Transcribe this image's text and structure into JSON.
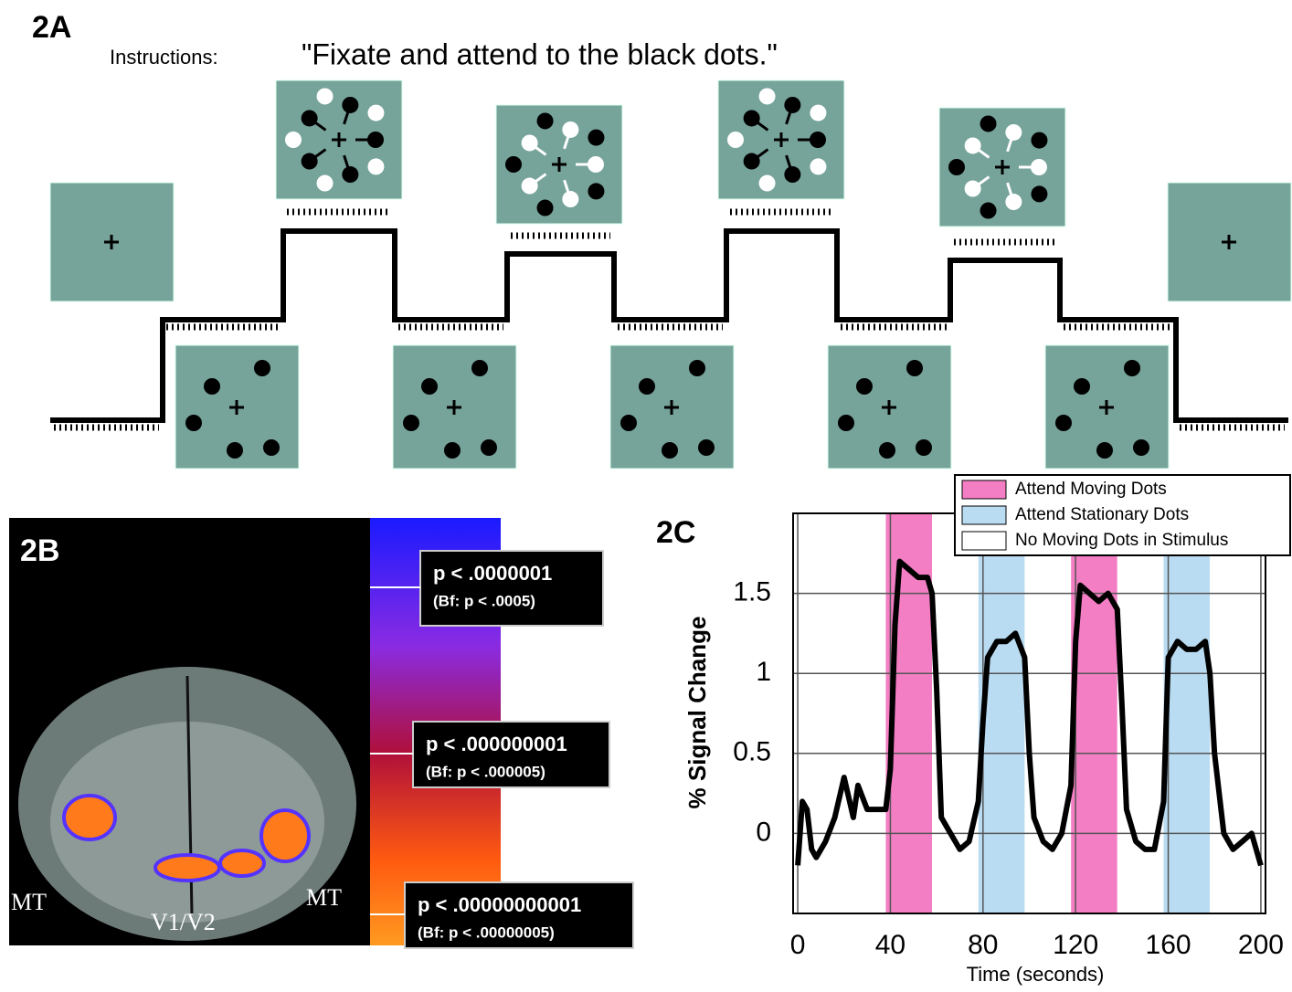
{
  "panel_a": {
    "label": "2A",
    "instructions_label": "Instructions:",
    "instructions": "\"Fixate and attend to the black dots.\""
  },
  "panel_b": {
    "label": "2B",
    "regions": [
      "MT",
      "V1/V2",
      "MT"
    ],
    "thresholds": [
      {
        "p": "p < .0000001",
        "bf": "(Bf: p < .0005)"
      },
      {
        "p": "p < .000000001",
        "bf": "(Bf: p < .000005)"
      },
      {
        "p": "p < .00000000001",
        "bf": "(Bf: p < .00000005)"
      }
    ]
  },
  "chart_data": {
    "type": "line",
    "label": "2C",
    "ylabel": "% Signal Change",
    "xlabel": "Time (seconds)",
    "xlim": [
      -2,
      202
    ],
    "ylim": [
      -0.5,
      2.0
    ],
    "xticks": [
      0,
      40,
      80,
      120,
      160,
      200
    ],
    "yticks": [
      0,
      0.5,
      1,
      1.5
    ],
    "grid": true,
    "legend": "top-right",
    "bands": [
      {
        "name": "Attend Moving Dots",
        "color": "#f47ec4",
        "spans": [
          [
            38,
            58
          ],
          [
            118,
            138
          ]
        ]
      },
      {
        "name": "Attend Stationary Dots",
        "color": "#b9dcf2",
        "spans": [
          [
            78,
            98
          ],
          [
            158,
            178
          ]
        ]
      },
      {
        "name": "No Moving Dots in Stimulus",
        "color": "#ffffff",
        "spans": [
          [
            -2,
            38
          ],
          [
            58,
            78
          ],
          [
            98,
            118
          ],
          [
            138,
            158
          ],
          [
            178,
            202
          ]
        ]
      }
    ],
    "x": [
      0,
      2,
      4,
      6,
      8,
      12,
      16,
      20,
      24,
      26,
      30,
      34,
      38,
      40,
      42,
      44,
      48,
      52,
      56,
      58,
      60,
      62,
      66,
      70,
      74,
      78,
      80,
      82,
      86,
      90,
      94,
      98,
      100,
      102,
      106,
      110,
      114,
      118,
      120,
      122,
      126,
      130,
      134,
      138,
      140,
      142,
      146,
      150,
      154,
      158,
      160,
      164,
      168,
      172,
      176,
      178,
      180,
      184,
      188,
      192,
      196,
      200
    ],
    "series": [
      {
        "color": "#000000",
        "values": [
          -0.2,
          0.2,
          0.15,
          -0.1,
          -0.15,
          -0.05,
          0.1,
          0.35,
          0.1,
          0.3,
          0.15,
          0.15,
          0.15,
          0.4,
          1.3,
          1.7,
          1.65,
          1.6,
          1.6,
          1.5,
          0.9,
          0.1,
          0.0,
          -0.1,
          -0.05,
          0.2,
          0.7,
          1.1,
          1.2,
          1.2,
          1.25,
          1.1,
          0.5,
          0.1,
          -0.05,
          -0.1,
          0.0,
          0.3,
          1.2,
          1.55,
          1.5,
          1.45,
          1.5,
          1.4,
          0.8,
          0.15,
          -0.05,
          -0.1,
          -0.1,
          0.2,
          1.1,
          1.2,
          1.15,
          1.15,
          1.2,
          1.0,
          0.5,
          0.0,
          -0.1,
          -0.05,
          0.0,
          -0.2
        ]
      }
    ]
  }
}
